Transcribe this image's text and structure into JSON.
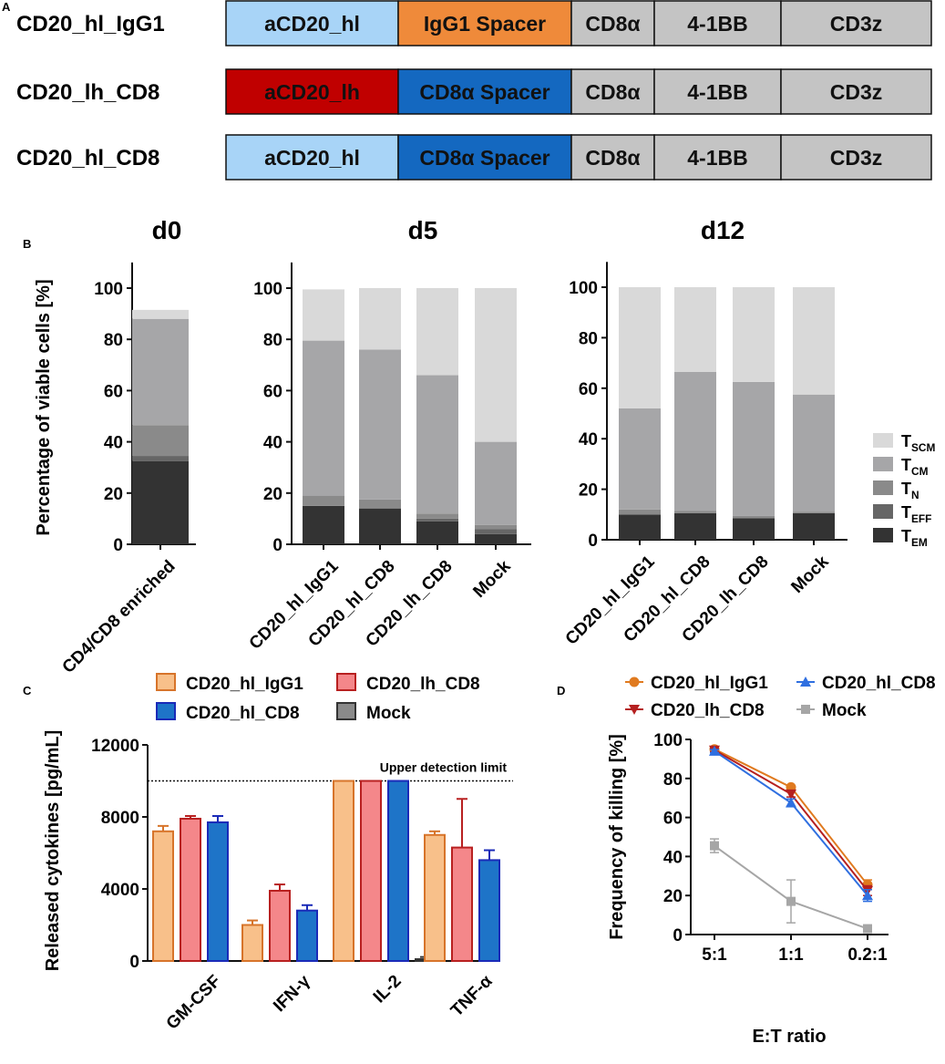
{
  "panel_labels": {
    "a": "A",
    "b": "B",
    "c": "C",
    "d": "D"
  },
  "colors": {
    "light_blue": "#a8d4f7",
    "orange": "#ef8a3a",
    "red": "#c00000",
    "blue": "#1468c0",
    "gray_domain": "#c4c4c4",
    "t_scm": "#d9d9d9",
    "t_cm": "#a6a6a8",
    "t_n": "#8a8a8a",
    "t_eff": "#666666",
    "t_em": "#333333",
    "c_igg1_fill": "#f8c08a",
    "c_igg1_edge": "#d7742a",
    "c_lh_fill": "#f4878a",
    "c_lh_edge": "#b82020",
    "c_hlcd8_fill": "#1e74c8",
    "c_hlcd8_edge": "#1a2ab8",
    "c_mock_fill": "#8a8a8a",
    "d_igg1": "#e07a1f",
    "d_hlcd8": "#2f6fe0",
    "d_lh": "#b52020",
    "d_mock": "#a6a6a6"
  },
  "panel_a": {
    "constructs": [
      {
        "name": "CD20_hl_IgG1",
        "domains": [
          {
            "label": "aCD20_hl",
            "color": "light_blue"
          },
          {
            "label": "IgG1 Spacer",
            "color": "orange"
          },
          {
            "label": "CD8α",
            "color": "gray_domain"
          },
          {
            "label": "4-1BB",
            "color": "gray_domain"
          },
          {
            "label": "CD3z",
            "color": "gray_domain"
          }
        ]
      },
      {
        "name": "CD20_lh_CD8",
        "domains": [
          {
            "label": "aCD20_lh",
            "color": "red"
          },
          {
            "label": "CD8α Spacer",
            "color": "blue"
          },
          {
            "label": "CD8α",
            "color": "gray_domain"
          },
          {
            "label": "4-1BB",
            "color": "gray_domain"
          },
          {
            "label": "CD3z",
            "color": "gray_domain"
          }
        ]
      },
      {
        "name": "CD20_hl_CD8",
        "domains": [
          {
            "label": "aCD20_hl",
            "color": "light_blue"
          },
          {
            "label": "CD8α Spacer",
            "color": "blue"
          },
          {
            "label": "CD8α",
            "color": "gray_domain"
          },
          {
            "label": "4-1BB",
            "color": "gray_domain"
          },
          {
            "label": "CD3z",
            "color": "gray_domain"
          }
        ]
      }
    ]
  },
  "chart_data": [
    {
      "panel": "B",
      "type": "bar",
      "stacked": true,
      "ylabel": "Percentage of viable cells [%]",
      "ylim": [
        0,
        110
      ],
      "yticks": [
        0,
        20,
        40,
        60,
        80,
        100
      ],
      "legend": [
        {
          "main": "T",
          "sub": "SCM"
        },
        {
          "main": "T",
          "sub": "CM"
        },
        {
          "main": "T",
          "sub": "N"
        },
        {
          "main": "T",
          "sub": "EFF"
        },
        {
          "main": "T",
          "sub": "EM"
        }
      ],
      "series_order": [
        "T_EM",
        "T_EFF",
        "T_N",
        "T_CM",
        "T_SCM"
      ],
      "groups": [
        {
          "title": "d0",
          "categories": [
            "CD4/CD8 enriched"
          ],
          "values": [
            [
              32.5,
              2,
              12,
              41.5,
              3.5
            ]
          ]
        },
        {
          "title": "d5",
          "categories": [
            "CD20_hl_IgG1",
            "CD20_hl_CD8",
            "CD20_lh_CD8",
            "Mock"
          ],
          "values": [
            [
              15,
              0,
              4,
              60.5,
              20
            ],
            [
              14,
              0,
              3.5,
              58.5,
              24
            ],
            [
              9,
              1,
              2,
              54,
              34
            ],
            [
              4,
              2,
              1.5,
              32.5,
              60
            ]
          ]
        },
        {
          "title": "d12",
          "categories": [
            "CD20_hl_IgG1",
            "CD20_hl_CD8",
            "CD20_lh_CD8",
            "Mock"
          ],
          "values": [
            [
              10,
              0,
              2,
              40,
              48
            ],
            [
              10.5,
              0,
              1,
              55,
              33.5
            ],
            [
              8.5,
              0,
              1,
              53,
              37.5
            ],
            [
              10.5,
              0,
              0.5,
              46.5,
              42.5
            ]
          ]
        }
      ]
    },
    {
      "panel": "C",
      "type": "bar",
      "ylabel": "Released cytokines [pg/mL]",
      "ylim": [
        0,
        12000
      ],
      "yticks": [
        0,
        4000,
        8000,
        12000
      ],
      "categories": [
        "GM-CSF",
        "IFN-γ",
        "IL-2",
        "TNF-α"
      ],
      "reference_line": {
        "value": 10000,
        "label": "Upper detection limit"
      },
      "series": [
        {
          "name": "CD20_hl_IgG1",
          "values": [
            7200,
            2000,
            10000,
            7000
          ],
          "errors": [
            300,
            250,
            0,
            200
          ]
        },
        {
          "name": "CD20_lh_CD8",
          "values": [
            7900,
            3900,
            10000,
            6300
          ],
          "errors": [
            150,
            350,
            0,
            2700
          ]
        },
        {
          "name": "CD20_hl_CD8",
          "values": [
            7700,
            2800,
            10000,
            5600
          ],
          "errors": [
            350,
            300,
            0,
            550
          ]
        },
        {
          "name": "Mock",
          "values": [
            0,
            0,
            100,
            0
          ],
          "errors": [
            0,
            0,
            120,
            0
          ]
        }
      ]
    },
    {
      "panel": "D",
      "type": "line",
      "ylabel": "Frequency of killing [%]",
      "xlabel": "E:T ratio",
      "x": [
        "5:1",
        "1:1",
        "0.2:1"
      ],
      "ylim": [
        0,
        100
      ],
      "yticks": [
        0,
        20,
        40,
        60,
        80,
        100
      ],
      "series": [
        {
          "name": "CD20_hl_IgG1",
          "values": [
            95,
            75.5,
            25.5
          ],
          "errors": [
            0.8,
            0.8,
            2.5
          ]
        },
        {
          "name": "CD20_hl_CD8",
          "values": [
            94,
            67.5,
            20
          ],
          "errors": [
            0.8,
            2,
            3
          ]
        },
        {
          "name": "CD20_lh_CD8",
          "values": [
            94.5,
            72,
            22.5
          ],
          "errors": [
            0.8,
            1.5,
            2.5
          ]
        },
        {
          "name": "Mock",
          "values": [
            45.5,
            17,
            3
          ],
          "errors": [
            3.5,
            11,
            0.5
          ]
        }
      ]
    }
  ]
}
